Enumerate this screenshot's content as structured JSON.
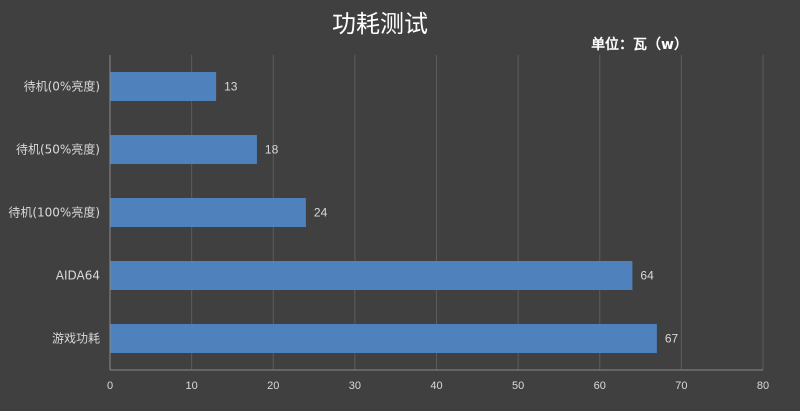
{
  "chart_data": {
    "type": "bar",
    "orientation": "horizontal",
    "title": "功耗测试",
    "unit_label": "单位：瓦（w）",
    "categories": [
      "待机(0%亮度)",
      "待机(50%亮度)",
      "待机(100%亮度)",
      "AIDA64",
      "游戏功耗"
    ],
    "values": [
      13,
      18,
      24,
      64,
      67
    ],
    "xlim": [
      0,
      80
    ],
    "xticks": [
      0,
      10,
      20,
      30,
      40,
      50,
      60,
      70,
      80
    ],
    "grid": true,
    "legend": "none",
    "bar_color": "#4f81bd"
  }
}
